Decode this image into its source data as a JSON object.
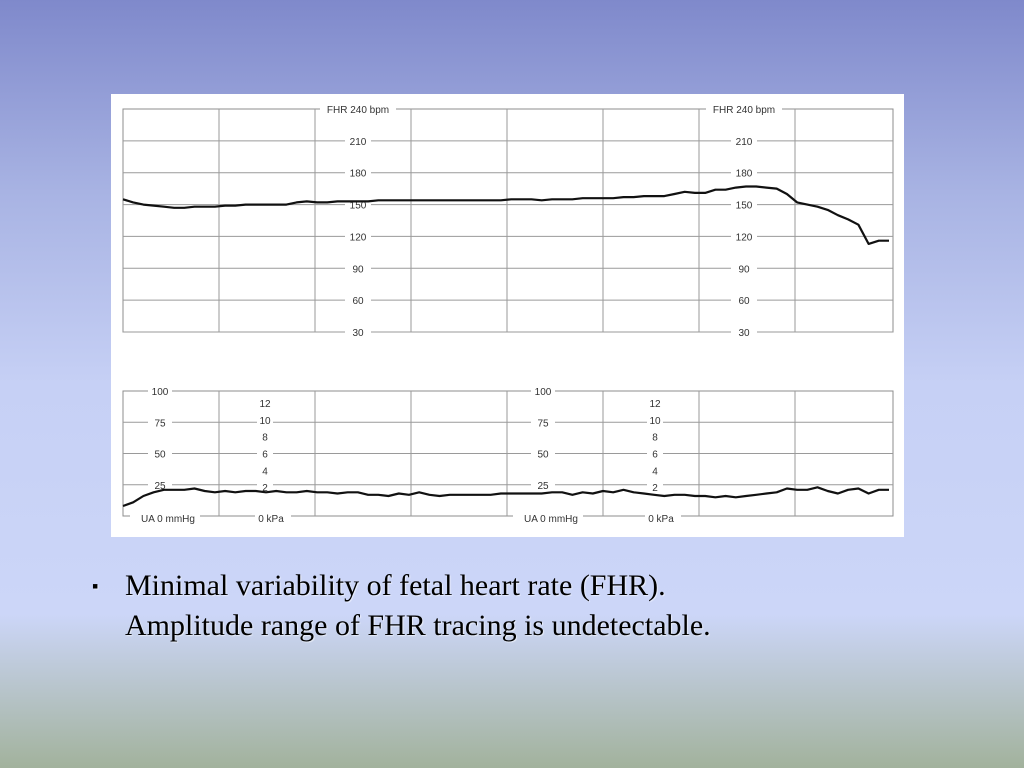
{
  "chart_data": [
    {
      "type": "line",
      "title": "",
      "xlabel": "",
      "ylabel": "",
      "header_label_left": "FHR 240 bpm",
      "header_label_right": "FHR 240 bpm",
      "y_ticks": [
        "210",
        "180",
        "150",
        "120",
        "90",
        "60",
        "30"
      ],
      "ylim": [
        30,
        240
      ],
      "grid": true,
      "series": [
        {
          "values": [
            155,
            152,
            150,
            149,
            148,
            147,
            147,
            148,
            148,
            148,
            149,
            149,
            150,
            150,
            150,
            150,
            150,
            152,
            153,
            152,
            152,
            153,
            153,
            153,
            153,
            154,
            154,
            154,
            154,
            154,
            154,
            154,
            154,
            154,
            154,
            154,
            154,
            154,
            155,
            155,
            155,
            154,
            155,
            155,
            155,
            156,
            156,
            156,
            156,
            157,
            157,
            158,
            158,
            158,
            160,
            162,
            161,
            161,
            164,
            164,
            166,
            167,
            167,
            166,
            165,
            160,
            152,
            150,
            148,
            145,
            140,
            136,
            131,
            113,
            116,
            116
          ]
        }
      ]
    },
    {
      "type": "line",
      "title": "",
      "xlabel": "",
      "ylabel": "",
      "y_ticks_mmhg": [
        "100",
        "75",
        "50",
        "25"
      ],
      "y_ticks_kpa": [
        "12",
        "10",
        "8",
        "6",
        "4",
        "2"
      ],
      "axis_label_mmhg": "UA  0  mmHg",
      "axis_label_kpa": "0 kPa",
      "ylim": [
        0,
        100
      ],
      "grid": true,
      "series": [
        {
          "values": [
            8,
            11,
            16,
            19,
            21,
            21,
            21,
            22,
            20,
            19,
            20,
            19,
            20,
            20,
            19,
            20,
            19,
            19,
            20,
            19,
            19,
            18,
            19,
            19,
            17,
            17,
            16,
            18,
            17,
            19,
            17,
            16,
            17,
            17,
            17,
            17,
            17,
            18,
            18,
            18,
            18,
            18,
            19,
            19,
            17,
            19,
            18,
            20,
            19,
            21,
            19,
            18,
            17,
            16,
            17,
            17,
            16,
            16,
            15,
            16,
            15,
            16,
            17,
            18,
            19,
            22,
            21,
            21,
            23,
            20,
            18,
            21,
            22,
            18,
            21,
            21
          ]
        }
      ]
    }
  ],
  "caption": {
    "bullet": "▪",
    "line1": "Minimal variability of fetal heart rate (FHR).",
    "line2": "Amplitude range of FHR tracing is undetectable."
  }
}
